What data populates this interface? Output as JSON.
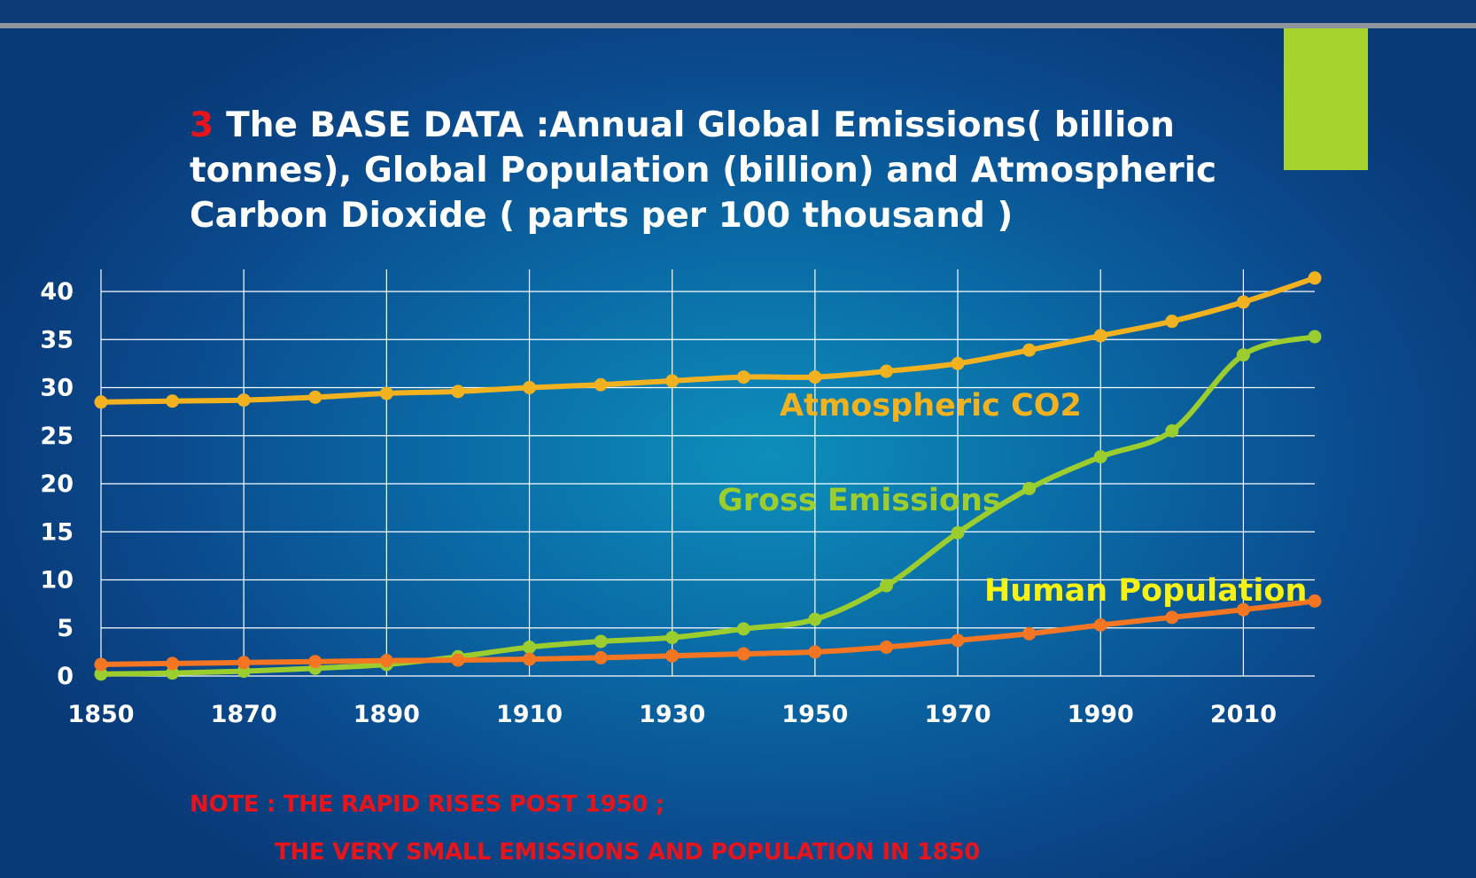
{
  "title": {
    "number": "3",
    "text": "The BASE DATA  :Annual Global Emissions( billion tonnes), Global Population (billion)    and Atmospheric Carbon Dioxide ( parts per 100 thousand )"
  },
  "notes": [
    "NOTE : THE RAPID RISES POST 1950  ;",
    "THE VERY SMALL EMISSIONS AND POPULATION IN 1850"
  ],
  "colors": {
    "co2": "#f2b21f",
    "emissions": "#9ccd2e",
    "population": "#f47622",
    "population_label": "#f7f213",
    "title_number": "#e8141c",
    "accent_block": "#a6d32d"
  },
  "chart_data": {
    "type": "line",
    "x": [
      1850,
      1860,
      1870,
      1880,
      1890,
      1900,
      1910,
      1920,
      1930,
      1940,
      1950,
      1960,
      1970,
      1980,
      1990,
      2000,
      2010,
      2020
    ],
    "xlim": [
      1850,
      2020
    ],
    "ylim": [
      0,
      40
    ],
    "xticks": [
      "1850",
      "1870",
      "1890",
      "1910",
      "1930",
      "1950",
      "1970",
      "1990",
      "2010"
    ],
    "yticks": [
      "0",
      "5",
      "10",
      "15",
      "20",
      "25",
      "30",
      "35",
      "40"
    ],
    "grid": true,
    "legend": "inline labels",
    "series": [
      {
        "name": "Atmospheric CO2",
        "key": "co2",
        "values": [
          28.5,
          28.6,
          28.7,
          29.0,
          29.4,
          29.6,
          30.0,
          30.3,
          30.7,
          31.1,
          31.1,
          31.7,
          32.5,
          33.9,
          35.4,
          36.9,
          38.9,
          41.4
        ]
      },
      {
        "name": "Gross Emissions",
        "key": "emissions",
        "values": [
          0.2,
          0.3,
          0.5,
          0.8,
          1.2,
          2.0,
          3.0,
          3.6,
          4.0,
          4.9,
          5.9,
          9.4,
          14.9,
          19.5,
          22.8,
          25.5,
          33.4,
          35.3
        ]
      },
      {
        "name": "Human Population",
        "key": "population",
        "values": [
          1.2,
          1.3,
          1.4,
          1.5,
          1.6,
          1.65,
          1.75,
          1.9,
          2.1,
          2.3,
          2.5,
          3.0,
          3.7,
          4.4,
          5.3,
          6.1,
          6.9,
          7.8
        ]
      }
    ]
  }
}
